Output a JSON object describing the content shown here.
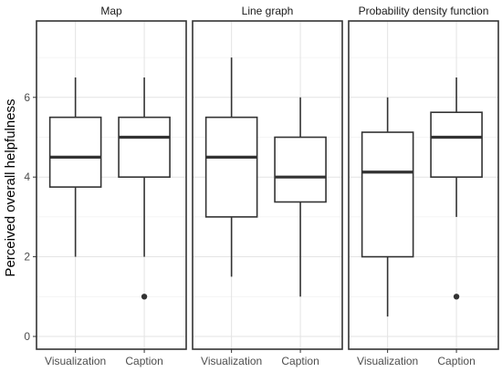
{
  "chart_data": {
    "type": "boxplot",
    "ylabel": "Perceived overall helpfulness",
    "xlabel": "",
    "ylim": [
      -0.3,
      7.5
    ],
    "yticks": [
      0,
      2,
      4,
      6
    ],
    "grid": true,
    "categories": [
      "Visualization",
      "Caption"
    ],
    "panels": [
      {
        "title": "Map",
        "boxes": [
          {
            "category": "Visualization",
            "min": 2,
            "q1": 3.75,
            "median": 4.5,
            "q3": 5.5,
            "max": 6.5,
            "outliers": []
          },
          {
            "category": "Caption",
            "min": 2,
            "q1": 4,
            "median": 5,
            "q3": 5.5,
            "max": 6.5,
            "outliers": [
              1
            ]
          }
        ]
      },
      {
        "title": "Line graph",
        "boxes": [
          {
            "category": "Visualization",
            "min": 1.5,
            "q1": 3,
            "median": 4.5,
            "q3": 5.5,
            "max": 7,
            "outliers": []
          },
          {
            "category": "Caption",
            "min": 1,
            "q1": 3.375,
            "median": 4,
            "q3": 5,
            "max": 6,
            "outliers": []
          }
        ]
      },
      {
        "title": "Probability density function",
        "boxes": [
          {
            "category": "Visualization",
            "min": 0.5,
            "q1": 2,
            "median": 4.125,
            "q3": 5.125,
            "max": 6,
            "outliers": []
          },
          {
            "category": "Caption",
            "min": 3,
            "q1": 4,
            "median": 5,
            "q3": 5.625,
            "max": 6.5,
            "outliers": [
              1
            ]
          }
        ]
      }
    ]
  }
}
